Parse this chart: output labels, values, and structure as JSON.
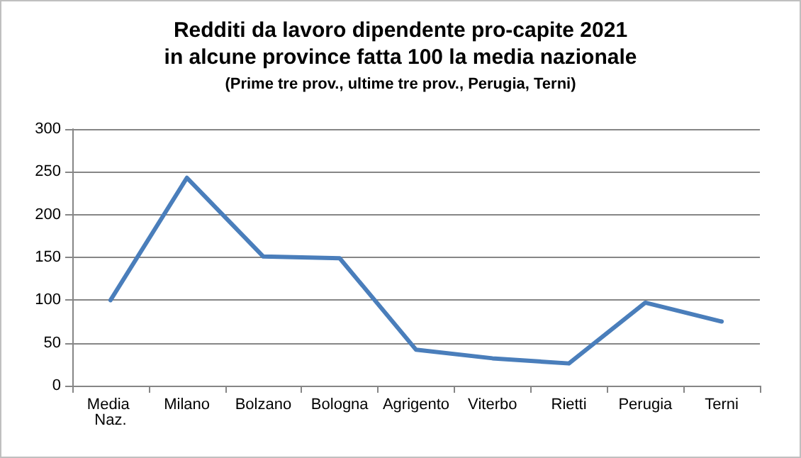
{
  "chart_data": {
    "type": "line",
    "title": "Redditi da lavoro dipendente pro-capite 2021\nin alcune province fatta 100 la media nazionale",
    "subtitle": "(Prime tre prov., ultime tre prov., Perugia, Terni)",
    "categories": [
      "Media Naz.",
      "Milano",
      "Bolzano",
      "Bologna",
      "Agrigento",
      "Viterbo",
      "Rietti",
      "Perugia",
      "Terni"
    ],
    "series": [
      {
        "color": "#4a7ebb",
        "values": [
          100,
          243,
          151,
          149,
          42,
          32,
          26,
          97,
          75
        ]
      }
    ],
    "ylim": [
      0,
      300
    ],
    "yticks": [
      0,
      50,
      100,
      150,
      200,
      250,
      300
    ],
    "grid": "y",
    "marker": "none",
    "line_style": "solid"
  }
}
